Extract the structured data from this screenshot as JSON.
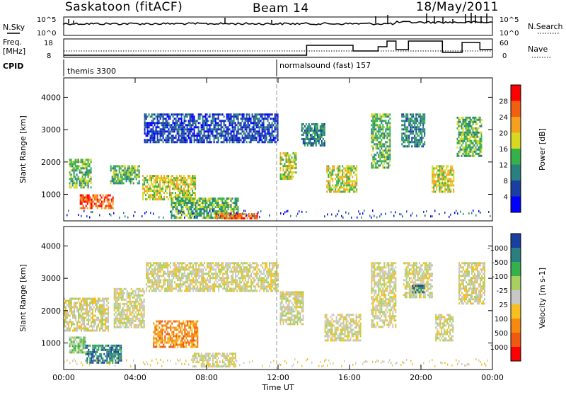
{
  "header": {
    "station": "Saskatoon (fitACF)",
    "beam": "Beam 14",
    "date": "18/May/2011"
  },
  "top_panels": {
    "nsky_label": "N.Sky",
    "nsky_ticks": [
      "10^5",
      "10^0"
    ],
    "nsearch_label": "N.Search",
    "nsearch_ticks": [
      "10^5",
      "10^0"
    ],
    "freq_label_1": "Freq.",
    "freq_label_2": "[MHz]",
    "freq_ticks": [
      "18",
      "8"
    ],
    "nave_label": "Nave",
    "nave_ticks": [
      "60",
      "0"
    ],
    "cpid_label": "CPID",
    "cpid_programs": [
      {
        "name": "themis 3300",
        "start_hour": 0
      },
      {
        "name": "normalsound (fast) 157",
        "start_hour": 12
      }
    ],
    "nave_steps": [
      {
        "h0": 0,
        "h1": 13.6,
        "v": 5
      },
      {
        "h0": 13.6,
        "h1": 16.2,
        "v": 40
      },
      {
        "h0": 16.2,
        "h1": 17.6,
        "v": 20
      },
      {
        "h0": 17.6,
        "h1": 18.1,
        "v": 35
      },
      {
        "h0": 18.1,
        "h1": 18.6,
        "v": 55
      },
      {
        "h0": 18.6,
        "h1": 19.3,
        "v": 25
      },
      {
        "h0": 19.3,
        "h1": 21.2,
        "v": 55
      },
      {
        "h0": 21.2,
        "h1": 22.3,
        "v": 15
      },
      {
        "h0": 22.3,
        "h1": 23.3,
        "v": 50
      },
      {
        "h0": 23.3,
        "h1": 24,
        "v": 25
      }
    ]
  },
  "chart_data": [
    {
      "type": "heatmap",
      "title": "Power",
      "ylabel": "Slant Range [km]",
      "ylim": [
        180,
        4600
      ],
      "yticks": [
        "1000",
        "2000",
        "3000",
        "4000"
      ],
      "colorbar_label": "Power [dB]",
      "colorbar_ticks": [
        "4",
        "8",
        "12",
        "16",
        "20",
        "24",
        "28"
      ],
      "colors": [
        "#0000ff",
        "#1a3fa0",
        "#2a8080",
        "#36b04a",
        "#d8d820",
        "#f5a020",
        "#f06010",
        "#ff0000"
      ],
      "echo_regions": [
        {
          "h0": 0.3,
          "h1": 1.5,
          "r0": 1200,
          "r1": 2100,
          "level": 3
        },
        {
          "h0": 0.9,
          "h1": 2.8,
          "r0": 550,
          "r1": 1000,
          "level": 6
        },
        {
          "h0": 2.6,
          "h1": 4.2,
          "r0": 1350,
          "r1": 1900,
          "level": 3
        },
        {
          "h0": 4.4,
          "h1": 7.4,
          "r0": 850,
          "r1": 1600,
          "level": 4
        },
        {
          "h0": 6.0,
          "h1": 9.8,
          "r0": 300,
          "r1": 900,
          "level": 3
        },
        {
          "h0": 8.5,
          "h1": 10.8,
          "r0": 250,
          "r1": 420,
          "level": 6
        },
        {
          "h0": 4.5,
          "h1": 12.0,
          "r0": 2600,
          "r1": 3500,
          "level": 1
        },
        {
          "h0": 12.1,
          "h1": 13.0,
          "r0": 1500,
          "r1": 2300,
          "level": 4
        },
        {
          "h0": 13.3,
          "h1": 14.6,
          "r0": 2500,
          "r1": 3200,
          "level": 2
        },
        {
          "h0": 14.7,
          "h1": 16.4,
          "r0": 1100,
          "r1": 1900,
          "level": 4
        },
        {
          "h0": 17.2,
          "h1": 18.3,
          "r0": 1800,
          "r1": 3500,
          "level": 3
        },
        {
          "h0": 18.9,
          "h1": 20.2,
          "r0": 2500,
          "r1": 3500,
          "level": 2
        },
        {
          "h0": 20.6,
          "h1": 21.8,
          "r0": 1100,
          "r1": 1900,
          "level": 4
        },
        {
          "h0": 22.0,
          "h1": 23.4,
          "r0": 2200,
          "r1": 3400,
          "level": 3
        }
      ]
    },
    {
      "type": "heatmap",
      "title": "Velocity",
      "ylabel": "Slant Range [km]",
      "xlabel": "Time UT",
      "ylim": [
        180,
        4600
      ],
      "yticks": [
        "1000",
        "2000",
        "3000",
        "4000"
      ],
      "xticks": [
        "00:00",
        "04:00",
        "08:00",
        "12:00",
        "16:00",
        "20:00",
        "00:00"
      ],
      "colorbar_label": "Velocity [m s-1]",
      "colorbar_ticks": [
        "1000",
        "500",
        "100",
        "25",
        "-25",
        "-100",
        "-500",
        "-1000"
      ],
      "colors": [
        "#1a3fa0",
        "#2a8080",
        "#36b04a",
        "#a8d060",
        "#c8c8c8",
        "#f5c020",
        "#f58a10",
        "#f05a10",
        "#ff0000"
      ],
      "echo_regions": [
        {
          "h0": 0.0,
          "h1": 2.5,
          "r0": 1400,
          "r1": 2400,
          "level": 4
        },
        {
          "h0": 0.3,
          "h1": 1.2,
          "r0": 700,
          "r1": 1200,
          "level": 3
        },
        {
          "h0": 1.2,
          "h1": 3.2,
          "r0": 400,
          "r1": 950,
          "level": 1
        },
        {
          "h0": 2.8,
          "h1": 4.5,
          "r0": 1500,
          "r1": 2700,
          "level": 4
        },
        {
          "h0": 5.0,
          "h1": 7.5,
          "r0": 900,
          "r1": 1700,
          "level": 6
        },
        {
          "h0": 4.6,
          "h1": 12.0,
          "r0": 2600,
          "r1": 3500,
          "level": 4
        },
        {
          "h0": 7.2,
          "h1": 9.6,
          "r0": 300,
          "r1": 700,
          "level": 4
        },
        {
          "h0": 12.1,
          "h1": 13.4,
          "r0": 1600,
          "r1": 2600,
          "level": 4
        },
        {
          "h0": 14.6,
          "h1": 16.6,
          "r0": 1100,
          "r1": 1900,
          "level": 4
        },
        {
          "h0": 17.2,
          "h1": 18.6,
          "r0": 1500,
          "r1": 3500,
          "level": 4
        },
        {
          "h0": 19.0,
          "h1": 20.6,
          "r0": 2400,
          "r1": 3500,
          "level": 4
        },
        {
          "h0": 19.5,
          "h1": 20.2,
          "r0": 2550,
          "r1": 2800,
          "level": 1
        },
        {
          "h0": 20.8,
          "h1": 21.8,
          "r0": 1100,
          "r1": 1900,
          "level": 4
        },
        {
          "h0": 22.1,
          "h1": 23.6,
          "r0": 2200,
          "r1": 3500,
          "level": 4
        }
      ]
    }
  ]
}
